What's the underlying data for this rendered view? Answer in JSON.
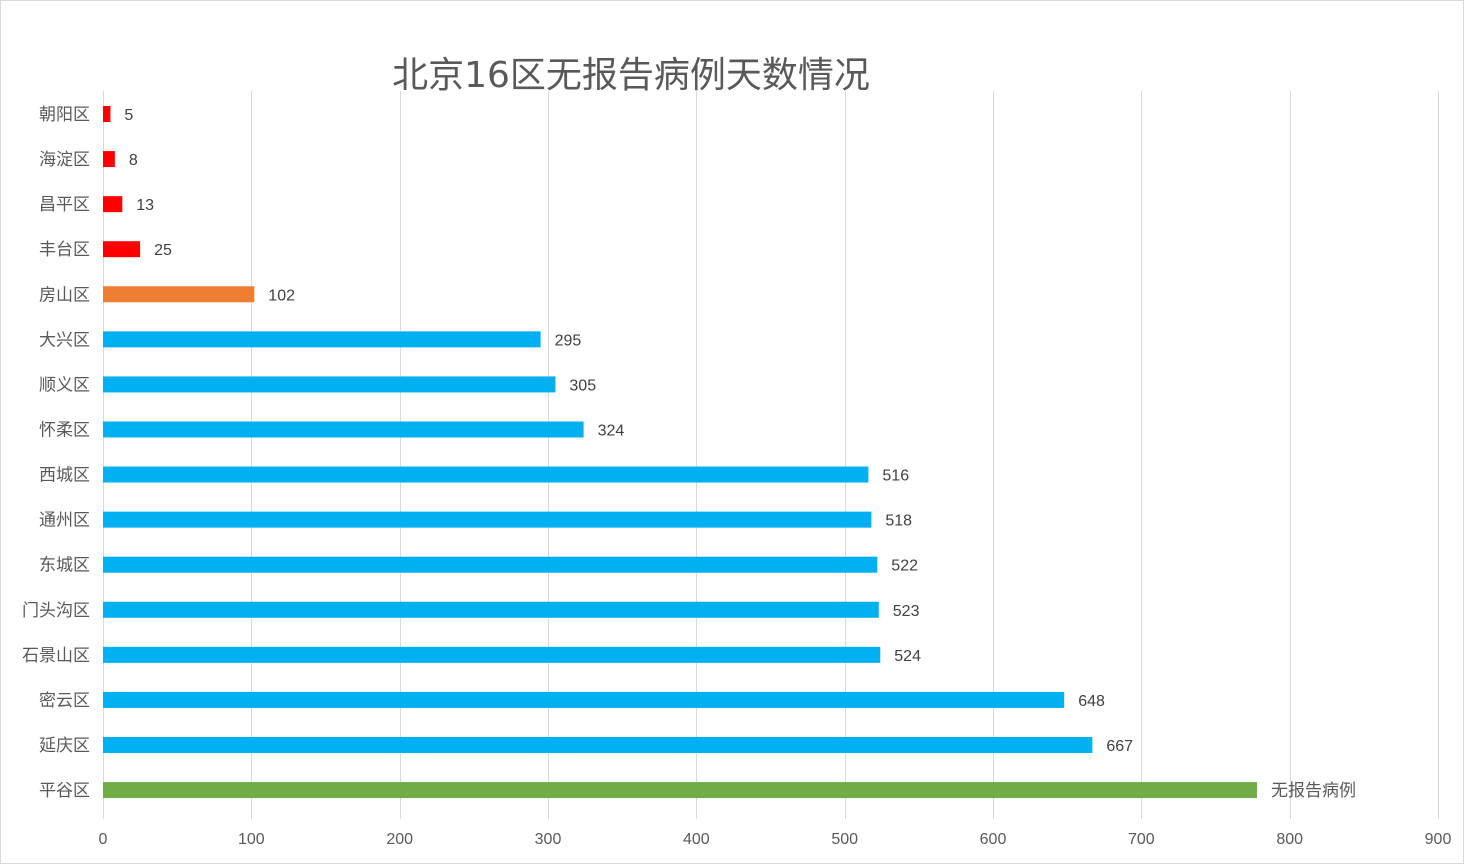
{
  "chart_data": {
    "type": "bar",
    "orientation": "horizontal",
    "title": "北京16区无报告病例天数情况",
    "categories": [
      "朝阳区",
      "海淀区",
      "昌平区",
      "丰台区",
      "房山区",
      "大兴区",
      "顺义区",
      "怀柔区",
      "西城区",
      "通州区",
      "东城区",
      "门头沟区",
      "石景山区",
      "密云区",
      "延庆区",
      "平谷区"
    ],
    "values": [
      5,
      8,
      13,
      25,
      102,
      295,
      305,
      324,
      516,
      518,
      522,
      523,
      524,
      648,
      667,
      778
    ],
    "data_labels": [
      "5",
      "8",
      "13",
      "25",
      "102",
      "295",
      "305",
      "324",
      "516",
      "518",
      "522",
      "523",
      "524",
      "648",
      "667",
      "无报告病例"
    ],
    "colors": [
      "#ff0000",
      "#ff0000",
      "#ff0000",
      "#ff0000",
      "#ed7d31",
      "#00b0f0",
      "#00b0f0",
      "#00b0f0",
      "#00b0f0",
      "#00b0f0",
      "#00b0f0",
      "#00b0f0",
      "#00b0f0",
      "#00b0f0",
      "#00b0f0",
      "#70ad47"
    ],
    "xlim": [
      0,
      900
    ],
    "x_ticks": [
      0,
      100,
      200,
      300,
      400,
      500,
      600,
      700,
      800,
      900
    ],
    "xlabel": "",
    "ylabel": "",
    "grid": "vertical",
    "legend": "none"
  }
}
